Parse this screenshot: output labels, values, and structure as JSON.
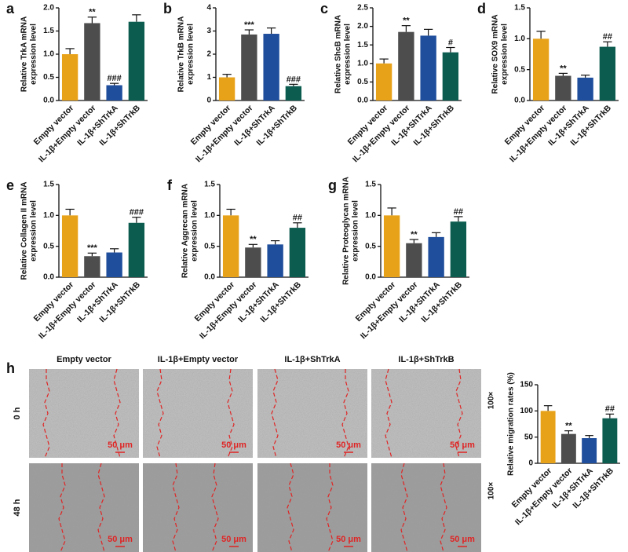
{
  "chart_data": [
    {
      "type": "bar",
      "panel": "a",
      "ylabel": [
        "Relative TrkA mRNA",
        "expression level"
      ],
      "categories": [
        "Empty vector",
        "IL-1β+Empty vector",
        "IL-1β+ShTrkA",
        "IL-1β+ShTrkB"
      ],
      "values": [
        1.0,
        1.67,
        0.33,
        1.7
      ],
      "errors": [
        0.12,
        0.13,
        0.04,
        0.15
      ],
      "colors": [
        "#e8a21a",
        "#4d4d4d",
        "#1f4e9c",
        "#0d5c50"
      ],
      "annotations": [
        {
          "index": 1,
          "text": "**"
        },
        {
          "index": 2,
          "text": "###"
        }
      ],
      "ylim": [
        0,
        2
      ],
      "yticks": [
        {
          "value": 0,
          "label": "0.0"
        },
        0.5,
        {
          "value": 1,
          "label": "1.0"
        },
        1.5,
        {
          "value": 2,
          "label": "2.0"
        }
      ]
    },
    {
      "type": "bar",
      "panel": "b",
      "ylabel": [
        "Relative TrkB mRNA",
        "expression level"
      ],
      "categories": [
        "Empty vector",
        "IL-1β+Empty vector",
        "IL-1β+ShTrkA",
        "IL-1β+ShTrkB"
      ],
      "values": [
        1.0,
        2.85,
        2.88,
        0.62
      ],
      "errors": [
        0.13,
        0.2,
        0.25,
        0.08
      ],
      "colors": [
        "#e8a21a",
        "#4d4d4d",
        "#1f4e9c",
        "#0d5c50"
      ],
      "annotations": [
        {
          "index": 1,
          "text": "***"
        },
        {
          "index": 3,
          "text": "###"
        }
      ],
      "ylim": [
        0,
        4
      ],
      "yticks": [
        0,
        1,
        2,
        3,
        4
      ]
    },
    {
      "type": "bar",
      "panel": "c",
      "ylabel": [
        "Relative ShcB mRNA",
        "expression level"
      ],
      "categories": [
        "Empty vector",
        "IL-1β+Empty vector",
        "IL-1β+ShTrkA",
        "IL-1β+ShTrkB"
      ],
      "values": [
        1.0,
        1.85,
        1.75,
        1.3
      ],
      "errors": [
        0.12,
        0.17,
        0.17,
        0.13
      ],
      "colors": [
        "#e8a21a",
        "#4d4d4d",
        "#1f4e9c",
        "#0d5c50"
      ],
      "annotations": [
        {
          "index": 1,
          "text": "**"
        },
        {
          "index": 3,
          "text": "#"
        }
      ],
      "ylim": [
        0,
        2.5
      ],
      "yticks": [
        {
          "value": 0,
          "label": "0.0"
        },
        0.5,
        {
          "value": 1,
          "label": "1.0"
        },
        1.5,
        {
          "value": 2,
          "label": "2.0"
        },
        2.5
      ]
    },
    {
      "type": "bar",
      "panel": "d",
      "ylabel": [
        "Relative SOX9 mRNA",
        "expression level"
      ],
      "categories": [
        "Empty vector",
        "IL-1β+Empty vector",
        "IL-1β+ShTrkA",
        "IL-1β+ShTrkB"
      ],
      "values": [
        1.0,
        0.4,
        0.37,
        0.87
      ],
      "errors": [
        0.12,
        0.04,
        0.04,
        0.08
      ],
      "colors": [
        "#e8a21a",
        "#4d4d4d",
        "#1f4e9c",
        "#0d5c50"
      ],
      "annotations": [
        {
          "index": 1,
          "text": "**"
        },
        {
          "index": 3,
          "text": "##"
        }
      ],
      "ylim": [
        0,
        1.5
      ],
      "yticks": [
        {
          "value": 0,
          "label": "0.0"
        },
        0.5,
        {
          "value": 1,
          "label": "1.0"
        },
        1.5
      ]
    },
    {
      "type": "bar",
      "panel": "e",
      "ylabel": [
        "Relative Collagen II mRNA",
        "expression level"
      ],
      "categories": [
        "Empty vector",
        "IL-1β+Empty vector",
        "IL-1β+ShTrkA",
        "IL-1β+ShTrkB"
      ],
      "values": [
        1.0,
        0.34,
        0.4,
        0.88
      ],
      "errors": [
        0.1,
        0.05,
        0.06,
        0.09
      ],
      "colors": [
        "#e8a21a",
        "#4d4d4d",
        "#1f4e9c",
        "#0d5c50"
      ],
      "annotations": [
        {
          "index": 1,
          "text": "***"
        },
        {
          "index": 3,
          "text": "###"
        }
      ],
      "ylim": [
        0,
        1.5
      ],
      "yticks": [
        {
          "value": 0,
          "label": "0.0"
        },
        0.5,
        {
          "value": 1,
          "label": "1.0"
        },
        1.5
      ]
    },
    {
      "type": "bar",
      "panel": "f",
      "ylabel": [
        "Relative Aggrecan mRNA",
        "expression level"
      ],
      "categories": [
        "Empty vector",
        "IL-1β+Empty vector",
        "IL-1β+ShTrkA",
        "IL-1β+ShTrkB"
      ],
      "values": [
        1.0,
        0.48,
        0.53,
        0.8
      ],
      "errors": [
        0.1,
        0.05,
        0.06,
        0.08
      ],
      "colors": [
        "#e8a21a",
        "#4d4d4d",
        "#1f4e9c",
        "#0d5c50"
      ],
      "annotations": [
        {
          "index": 1,
          "text": "**"
        },
        {
          "index": 3,
          "text": "##"
        }
      ],
      "ylim": [
        0,
        1.5
      ],
      "yticks": [
        {
          "value": 0,
          "label": "0.0"
        },
        0.5,
        {
          "value": 1,
          "label": "1.0"
        },
        1.5
      ]
    },
    {
      "type": "bar",
      "panel": "g",
      "ylabel": [
        "Relative Proteoglycan mRNA",
        "expression level"
      ],
      "categories": [
        "Empty vector",
        "IL-1β+Empty vector",
        "IL-1β+ShTrkA",
        "IL-1β+ShTrkB"
      ],
      "values": [
        1.0,
        0.55,
        0.65,
        0.9
      ],
      "errors": [
        0.12,
        0.06,
        0.07,
        0.08
      ],
      "colors": [
        "#e8a21a",
        "#4d4d4d",
        "#1f4e9c",
        "#0d5c50"
      ],
      "annotations": [
        {
          "index": 1,
          "text": "**"
        },
        {
          "index": 3,
          "text": "##"
        }
      ],
      "ylim": [
        0,
        1.5
      ],
      "yticks": [
        {
          "value": 0,
          "label": "0.0"
        },
        0.5,
        {
          "value": 1,
          "label": "1.0"
        },
        1.5
      ]
    },
    {
      "type": "bar",
      "ylabel": [
        "Relative migration rates (%)"
      ],
      "categories": [
        "Empty vector",
        "IL-1β+Empty vector",
        "IL-1β+ShTrkA",
        "IL-1β+ShTrkB"
      ],
      "values": [
        100,
        56,
        48,
        86
      ],
      "errors": [
        10,
        6,
        5,
        8
      ],
      "colors": [
        "#e8a21a",
        "#4d4d4d",
        "#1f4e9c",
        "#0d5c50"
      ],
      "annotations": [
        {
          "index": 1,
          "text": "**"
        },
        {
          "index": 3,
          "text": "##"
        }
      ],
      "ylim": [
        0,
        150
      ],
      "yticks": [
        0,
        50,
        100,
        150
      ]
    }
  ],
  "micrographs": {
    "panel": "h",
    "columns": [
      "Empty vector",
      "IL-1β+Empty vector",
      "IL-1β+ShTrkA",
      "IL-1β+ShTrkB"
    ],
    "rows": [
      "0 h",
      "48 h"
    ],
    "scale_bar": "50 μm",
    "magnifications": [
      "100×",
      "100×"
    ]
  }
}
